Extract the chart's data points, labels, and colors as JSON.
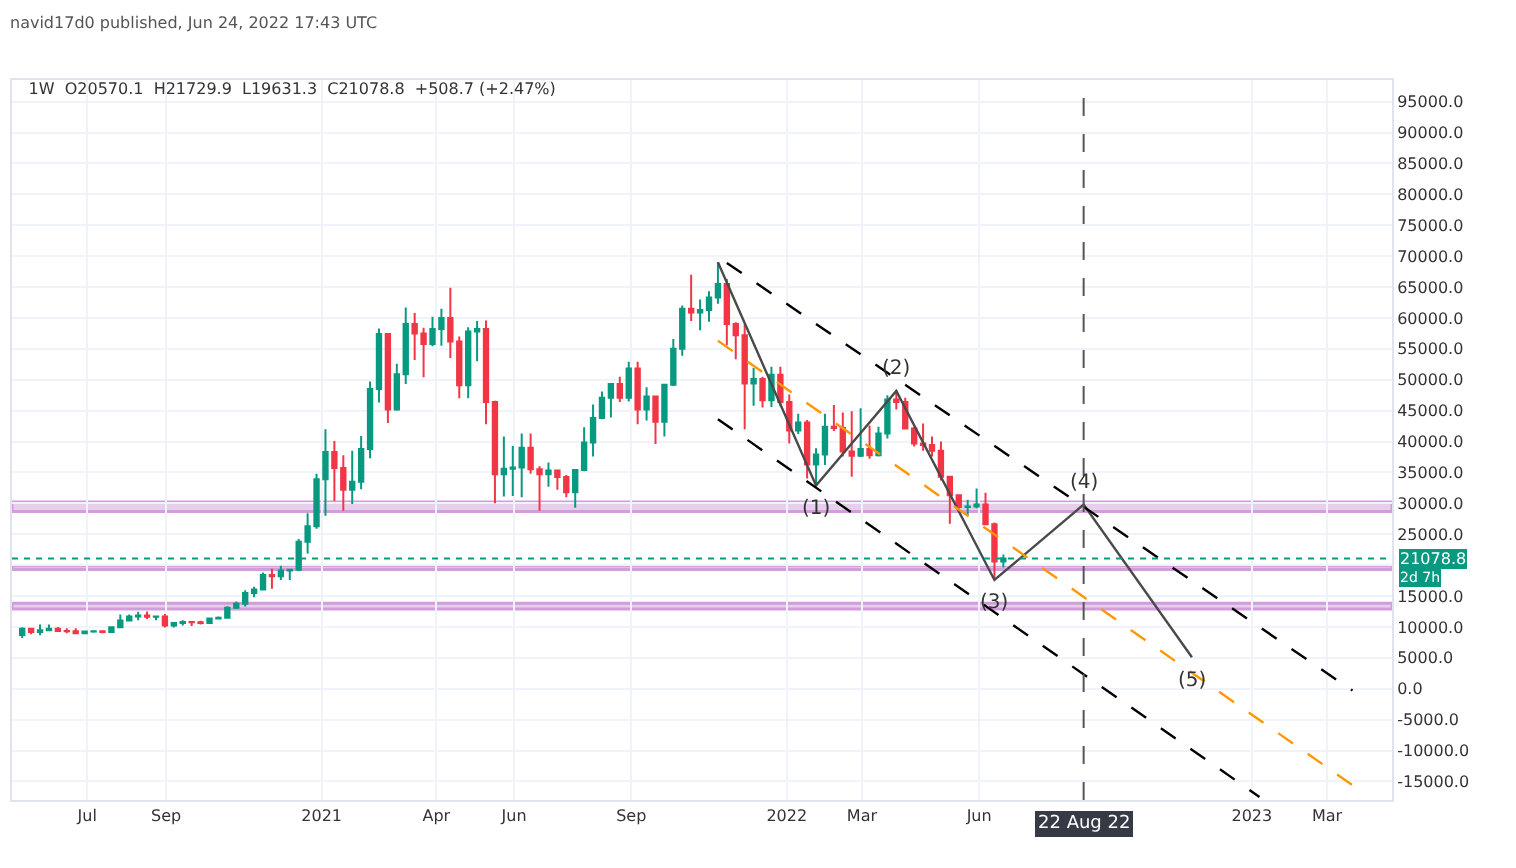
{
  "chart_data": {
    "type": "candlestick",
    "title": "1W  O20570.1  H21729.9  L19631.3  C21078.8  +508.7 (+2.47%)",
    "annotations": [
      "navid17d0 published, Jun 24, 2022 17:43 UTC",
      "2d 7h",
      {
        "text": "(1)",
        "x": "2022-01-24",
        "y": 32900
      },
      {
        "text": "(2)",
        "x": "2022-03-28",
        "y": 48200
      },
      {
        "text": "(3)",
        "x": "2022-06-13",
        "y": 17600
      },
      {
        "text": "(4)",
        "x": "2022-08-22",
        "y": 29800
      },
      {
        "text": "(5)",
        "x": "2022-11-15",
        "y": 5100
      }
    ],
    "x": [
      "2020-05-11",
      "2020-05-18",
      "2020-05-25",
      "2020-06-01",
      "2020-06-08",
      "2020-06-15",
      "2020-06-22",
      "2020-06-29",
      "2020-07-06",
      "2020-07-13",
      "2020-07-20",
      "2020-07-27",
      "2020-08-03",
      "2020-08-10",
      "2020-08-17",
      "2020-08-24",
      "2020-08-31",
      "2020-09-07",
      "2020-09-14",
      "2020-09-21",
      "2020-09-28",
      "2020-10-05",
      "2020-10-12",
      "2020-10-19",
      "2020-10-26",
      "2020-11-02",
      "2020-11-09",
      "2020-11-16",
      "2020-11-23",
      "2020-11-30",
      "2020-12-07",
      "2020-12-14",
      "2020-12-21",
      "2020-12-28",
      "2021-01-04",
      "2021-01-11",
      "2021-01-18",
      "2021-01-25",
      "2021-02-01",
      "2021-02-08",
      "2021-02-15",
      "2021-02-22",
      "2021-03-01",
      "2021-03-08",
      "2021-03-15",
      "2021-03-22",
      "2021-03-29",
      "2021-04-05",
      "2021-04-12",
      "2021-04-19",
      "2021-04-26",
      "2021-05-03",
      "2021-05-10",
      "2021-05-17",
      "2021-05-24",
      "2021-05-31",
      "2021-06-07",
      "2021-06-14",
      "2021-06-21",
      "2021-06-28",
      "2021-07-05",
      "2021-07-12",
      "2021-07-19",
      "2021-07-26",
      "2021-08-02",
      "2021-08-09",
      "2021-08-16",
      "2021-08-23",
      "2021-08-30",
      "2021-09-06",
      "2021-09-13",
      "2021-09-20",
      "2021-09-27",
      "2021-10-04",
      "2021-10-11",
      "2021-10-18",
      "2021-10-25",
      "2021-11-01",
      "2021-11-08",
      "2021-11-15",
      "2021-11-22",
      "2021-11-29",
      "2021-12-06",
      "2021-12-13",
      "2021-12-20",
      "2021-12-27",
      "2022-01-03",
      "2022-01-10",
      "2022-01-17",
      "2022-01-24",
      "2022-01-31",
      "2022-02-07",
      "2022-02-14",
      "2022-02-21",
      "2022-02-28",
      "2022-03-07",
      "2022-03-14",
      "2022-03-21",
      "2022-03-28",
      "2022-04-04",
      "2022-04-11",
      "2022-04-18",
      "2022-04-25",
      "2022-05-02",
      "2022-05-09",
      "2022-05-16",
      "2022-05-23",
      "2022-05-30",
      "2022-06-06",
      "2022-06-13",
      "2022-06-20"
    ],
    "ohlc": [
      [
        8700,
        9950,
        8200,
        9700
      ],
      [
        9700,
        9850,
        8800,
        9200
      ],
      [
        9200,
        10400,
        8650,
        9450
      ],
      [
        9450,
        10400,
        9300,
        9700
      ],
      [
        9700,
        9990,
        9200,
        9350
      ],
      [
        9350,
        9800,
        9000,
        9300
      ],
      [
        9300,
        9800,
        8900,
        9000
      ],
      [
        9000,
        9300,
        8900,
        9250
      ],
      [
        9250,
        9450,
        9050,
        9300
      ],
      [
        9300,
        9350,
        9000,
        9170
      ],
      [
        9170,
        10000,
        9100,
        9950
      ],
      [
        9950,
        12000,
        9900,
        11050
      ],
      [
        11050,
        12000,
        10900,
        11700
      ],
      [
        11700,
        12450,
        11100,
        11850
      ],
      [
        11850,
        12500,
        11300,
        11650
      ],
      [
        11650,
        11800,
        11100,
        11700
      ],
      [
        11700,
        12100,
        9900,
        10250
      ],
      [
        10250,
        10700,
        9900,
        10650
      ],
      [
        10650,
        11100,
        10250,
        10800
      ],
      [
        10800,
        10900,
        10150,
        10750
      ],
      [
        10750,
        11000,
        10400,
        10650
      ],
      [
        10650,
        11500,
        10500,
        11350
      ],
      [
        11350,
        11700,
        11200,
        11500
      ],
      [
        11500,
        13350,
        11400,
        13100
      ],
      [
        13100,
        14100,
        12900,
        13750
      ],
      [
        13750,
        15950,
        13300,
        15500
      ],
      [
        15500,
        16500,
        14800,
        16050
      ],
      [
        16050,
        18800,
        15900,
        18400
      ],
      [
        18400,
        19400,
        16200,
        18200
      ],
      [
        18200,
        19900,
        17600,
        19150
      ],
      [
        19150,
        19400,
        17600,
        19250
      ],
      [
        19250,
        24250,
        19000,
        23800
      ],
      [
        23800,
        28400,
        21900,
        26300
      ],
      [
        26300,
        34800,
        25900,
        33900
      ],
      [
        33900,
        42000,
        28000,
        38300
      ],
      [
        38300,
        40100,
        30400,
        35700
      ],
      [
        35700,
        37800,
        28800,
        32200
      ],
      [
        32200,
        38500,
        29900,
        33500
      ],
      [
        33500,
        40900,
        32300,
        38800
      ],
      [
        38800,
        49700,
        37300,
        48500
      ],
      [
        48500,
        58300,
        46300,
        57400
      ],
      [
        57400,
        57500,
        43000,
        45200
      ],
      [
        45200,
        52600,
        45000,
        50900
      ],
      [
        50900,
        61700,
        49300,
        59000
      ],
      [
        59000,
        60800,
        53200,
        57500
      ],
      [
        57500,
        58400,
        50400,
        55800
      ],
      [
        55800,
        60200,
        55400,
        58200
      ],
      [
        58200,
        61500,
        55500,
        60000
      ],
      [
        60000,
        64900,
        53500,
        56200
      ],
      [
        56200,
        57000,
        47000,
        49100
      ],
      [
        49100,
        58500,
        47000,
        57800
      ],
      [
        57800,
        59500,
        53000,
        58200
      ],
      [
        58200,
        59600,
        42800,
        46400
      ],
      [
        46400,
        46600,
        30000,
        34700
      ],
      [
        34700,
        40800,
        31100,
        35600
      ],
      [
        35600,
        39300,
        31200,
        35800
      ],
      [
        35800,
        41300,
        31000,
        39000
      ],
      [
        39000,
        41300,
        34800,
        35500
      ],
      [
        35500,
        36000,
        28800,
        34700
      ],
      [
        34700,
        36600,
        32700,
        35300
      ],
      [
        35300,
        35400,
        32200,
        34250
      ],
      [
        34250,
        34600,
        31000,
        31800
      ],
      [
        31800,
        35400,
        29300,
        35400
      ],
      [
        35400,
        42300,
        35200,
        39850
      ],
      [
        39850,
        46000,
        37600,
        43800
      ],
      [
        43800,
        48100,
        43600,
        47100
      ],
      [
        47100,
        49400,
        43900,
        49300
      ],
      [
        49300,
        50500,
        46400,
        47100
      ],
      [
        47100,
        52900,
        46500,
        51800
      ],
      [
        51800,
        52900,
        42800,
        45200
      ],
      [
        45200,
        48800,
        43400,
        47300
      ],
      [
        47300,
        47300,
        39600,
        43200
      ],
      [
        43200,
        49300,
        40800,
        49200
      ],
      [
        49200,
        56600,
        49000,
        55000
      ],
      [
        55000,
        62000,
        53900,
        61500
      ],
      [
        61500,
        67000,
        59500,
        60900
      ],
      [
        60900,
        63000,
        58000,
        61300
      ],
      [
        61300,
        64300,
        59400,
        63300
      ],
      [
        63300,
        69000,
        62300,
        65500
      ],
      [
        65500,
        66300,
        55600,
        59000
      ],
      [
        59000,
        59300,
        53300,
        57200
      ],
      [
        57200,
        59000,
        42000,
        49400
      ],
      [
        49400,
        51900,
        45800,
        50100
      ],
      [
        50100,
        50500,
        45500,
        46700
      ],
      [
        46700,
        52100,
        45600,
        50800
      ],
      [
        50800,
        52100,
        45700,
        46400
      ],
      [
        46400,
        47600,
        39700,
        41800
      ],
      [
        41800,
        44500,
        41200,
        43100
      ],
      [
        43100,
        43500,
        34000,
        36300
      ],
      [
        36300,
        38900,
        32900,
        37900
      ],
      [
        37900,
        44500,
        36200,
        42400
      ],
      [
        42400,
        45900,
        41700,
        42200
      ],
      [
        42200,
        44700,
        37600,
        38400
      ],
      [
        38400,
        44900,
        34300,
        37700
      ],
      [
        37700,
        45400,
        37500,
        38800
      ],
      [
        38800,
        42600,
        37200,
        37800
      ],
      [
        37800,
        42400,
        37600,
        41300
      ],
      [
        41300,
        47500,
        40500,
        46800
      ],
      [
        46800,
        48300,
        45200,
        46400
      ],
      [
        46400,
        47100,
        42100,
        42100
      ],
      [
        42100,
        42400,
        39200,
        39700
      ],
      [
        39700,
        42900,
        38500,
        39450
      ],
      [
        39450,
        40800,
        37600,
        38500
      ],
      [
        38500,
        40000,
        33700,
        34300
      ],
      [
        34300,
        34400,
        26700,
        31300
      ],
      [
        31300,
        31300,
        28600,
        29400
      ],
      [
        29400,
        30600,
        28000,
        29500
      ],
      [
        29500,
        32400,
        29200,
        29800
      ],
      [
        29800,
        31700,
        26500,
        26600
      ],
      [
        26600,
        26900,
        17600,
        20570
      ],
      [
        20570,
        21729.9,
        19631.3,
        21078.8
      ]
    ],
    "series": [
      {
        "type": "line",
        "color": "#4a4a4a",
        "line_style": "solid",
        "x": [
          "2021-11-08",
          "2022-01-24",
          "2022-03-28",
          "2022-06-13",
          "2022-08-22",
          "2022-11-15"
        ],
        "values": [
          69000,
          32900,
          48200,
          17600,
          29800,
          5100
        ]
      },
      {
        "type": "line",
        "color": "#000000",
        "line_style": "dashed",
        "x": [
          "2021-11-15",
          "2023-03-21"
        ],
        "values": [
          68900,
          -300
        ]
      },
      {
        "type": "line",
        "color": "#000000",
        "line_style": "dashed",
        "x": [
          "2021-11-08",
          "2023-01-07"
        ],
        "values": [
          43600,
          -17500
        ]
      },
      {
        "type": "line",
        "color": "#ff9800",
        "line_style": "dashed",
        "x": [
          "2021-11-08",
          "2023-03-21"
        ],
        "values": [
          56300,
          -15600
        ]
      }
    ],
    "bands": [
      {
        "axis": "y",
        "from": 28700,
        "to": 30200,
        "color": "#ce93d8"
      },
      {
        "axis": "y",
        "from": 19300,
        "to": 19900,
        "color": "#ce93d8"
      },
      {
        "axis": "y",
        "from": 12900,
        "to": 13850,
        "color": "#ce93d8"
      }
    ],
    "ref_lines": [
      {
        "axis": "y",
        "value": 21078.8,
        "label": "21078.8",
        "color": "#089981",
        "line_style": "dotted"
      },
      {
        "axis": "x",
        "value": "2022-08-22",
        "label": "22 Aug 22",
        "color": "#555555",
        "line_style": "dashed"
      }
    ],
    "xlim": [
      "2020-05-03",
      "2023-04-21"
    ],
    "xticks": [
      {
        "value": "2020-07-01",
        "label": "Jul"
      },
      {
        "value": "2020-09-01",
        "label": "Sep"
      },
      {
        "value": "2021-01-01",
        "label": "2021"
      },
      {
        "value": "2021-04-01",
        "label": "Apr"
      },
      {
        "value": "2021-06-01",
        "label": "Jun"
      },
      {
        "value": "2021-09-01",
        "label": "Sep"
      },
      {
        "value": "2022-01-01",
        "label": "2022"
      },
      {
        "value": "2022-03-01",
        "label": "Mar"
      },
      {
        "value": "2022-06-01",
        "label": "Jun"
      },
      {
        "value": "2023-01-01",
        "label": "2023"
      },
      {
        "value": "2023-03-01",
        "label": "Mar"
      }
    ],
    "ylim": [
      -18000,
      98500
    ],
    "yticks": [
      {
        "value": -15000,
        "label": "-15000.0"
      },
      {
        "value": -10000,
        "label": "-10000.0"
      },
      {
        "value": -5000,
        "label": "-5000.0"
      },
      {
        "value": 0,
        "label": "0.0"
      },
      {
        "value": 5000,
        "label": "5000.0"
      },
      {
        "value": 10000,
        "label": "10000.0"
      },
      {
        "value": 15000,
        "label": "15000.0"
      },
      {
        "value": 20000,
        "label": null
      },
      {
        "value": 25000,
        "label": "25000.0"
      },
      {
        "value": 30000,
        "label": "30000.0"
      },
      {
        "value": 35000,
        "label": "35000.0"
      },
      {
        "value": 40000,
        "label": "40000.0"
      },
      {
        "value": 45000,
        "label": "45000.0"
      },
      {
        "value": 50000,
        "label": "50000.0"
      },
      {
        "value": 55000,
        "label": "55000.0"
      },
      {
        "value": 60000,
        "label": "60000.0"
      },
      {
        "value": 65000,
        "label": "65000.0"
      },
      {
        "value": 70000,
        "label": "70000.0"
      },
      {
        "value": 75000,
        "label": "75000.0"
      },
      {
        "value": 80000,
        "label": "80000.0"
      },
      {
        "value": 85000,
        "label": "85000.0"
      },
      {
        "value": 90000,
        "label": "90000.0"
      },
      {
        "value": 95000,
        "label": "95000.0"
      }
    ],
    "grid": true
  }
}
